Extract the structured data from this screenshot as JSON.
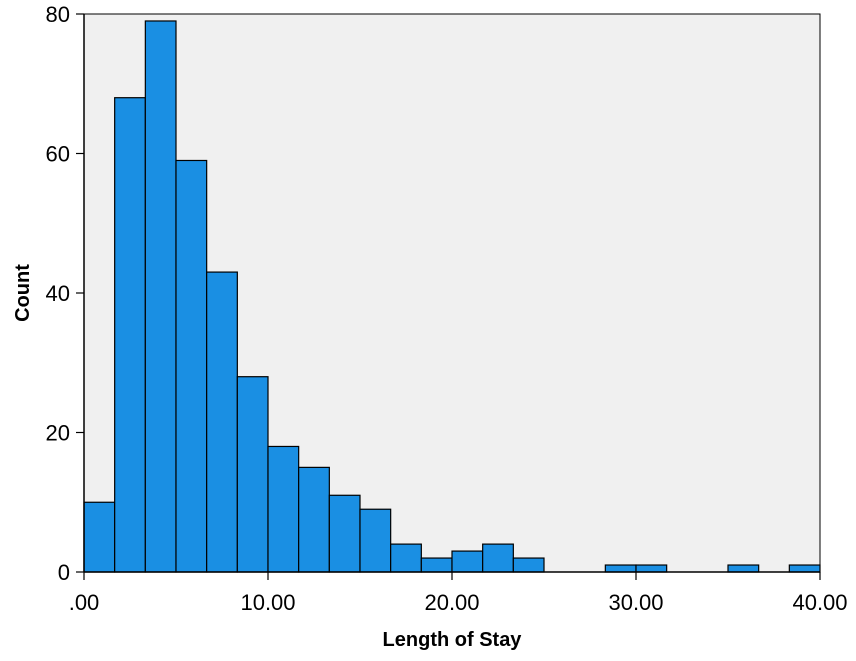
{
  "chart_data": {
    "type": "bar",
    "subtype": "histogram",
    "title": "",
    "xlabel": "Length of Stay",
    "ylabel": "Count",
    "xlim": [
      0,
      40
    ],
    "ylim": [
      0,
      80
    ],
    "bin_width": 1.6667,
    "bins": [
      {
        "start": 0.0,
        "end": 1.6667,
        "count": 10
      },
      {
        "start": 1.6667,
        "end": 3.3333,
        "count": 68
      },
      {
        "start": 3.3333,
        "end": 5.0,
        "count": 79
      },
      {
        "start": 5.0,
        "end": 6.6667,
        "count": 59
      },
      {
        "start": 6.6667,
        "end": 8.3333,
        "count": 43
      },
      {
        "start": 8.3333,
        "end": 10.0,
        "count": 28
      },
      {
        "start": 10.0,
        "end": 11.6667,
        "count": 18
      },
      {
        "start": 11.6667,
        "end": 13.3333,
        "count": 15
      },
      {
        "start": 13.3333,
        "end": 15.0,
        "count": 11
      },
      {
        "start": 15.0,
        "end": 16.6667,
        "count": 9
      },
      {
        "start": 16.6667,
        "end": 18.3333,
        "count": 4
      },
      {
        "start": 18.3333,
        "end": 20.0,
        "count": 2
      },
      {
        "start": 20.0,
        "end": 21.6667,
        "count": 3
      },
      {
        "start": 21.6667,
        "end": 23.3333,
        "count": 4
      },
      {
        "start": 23.3333,
        "end": 25.0,
        "count": 2
      },
      {
        "start": 25.0,
        "end": 26.6667,
        "count": 0
      },
      {
        "start": 26.6667,
        "end": 28.3333,
        "count": 0
      },
      {
        "start": 28.3333,
        "end": 30.0,
        "count": 1
      },
      {
        "start": 30.0,
        "end": 31.6667,
        "count": 1
      },
      {
        "start": 31.6667,
        "end": 33.3333,
        "count": 0
      },
      {
        "start": 33.3333,
        "end": 35.0,
        "count": 0
      },
      {
        "start": 35.0,
        "end": 36.6667,
        "count": 1
      },
      {
        "start": 36.6667,
        "end": 38.3333,
        "count": 0
      },
      {
        "start": 38.3333,
        "end": 40.0,
        "count": 1
      }
    ],
    "x_ticks": [
      {
        "value": 0,
        "label": ".00"
      },
      {
        "value": 10,
        "label": "10.00"
      },
      {
        "value": 20,
        "label": "20.00"
      },
      {
        "value": 30,
        "label": "30.00"
      },
      {
        "value": 40,
        "label": "40.00"
      }
    ],
    "y_ticks": [
      {
        "value": 0,
        "label": "0"
      },
      {
        "value": 20,
        "label": "20"
      },
      {
        "value": 40,
        "label": "40"
      },
      {
        "value": 60,
        "label": "60"
      },
      {
        "value": 80,
        "label": "80"
      }
    ],
    "grid": false,
    "legend": "none",
    "colors": {
      "bar_fill": "#1a8fe3",
      "bar_stroke": "#000000",
      "plot_background": "#f0f0f0",
      "axis": "#000000"
    }
  }
}
